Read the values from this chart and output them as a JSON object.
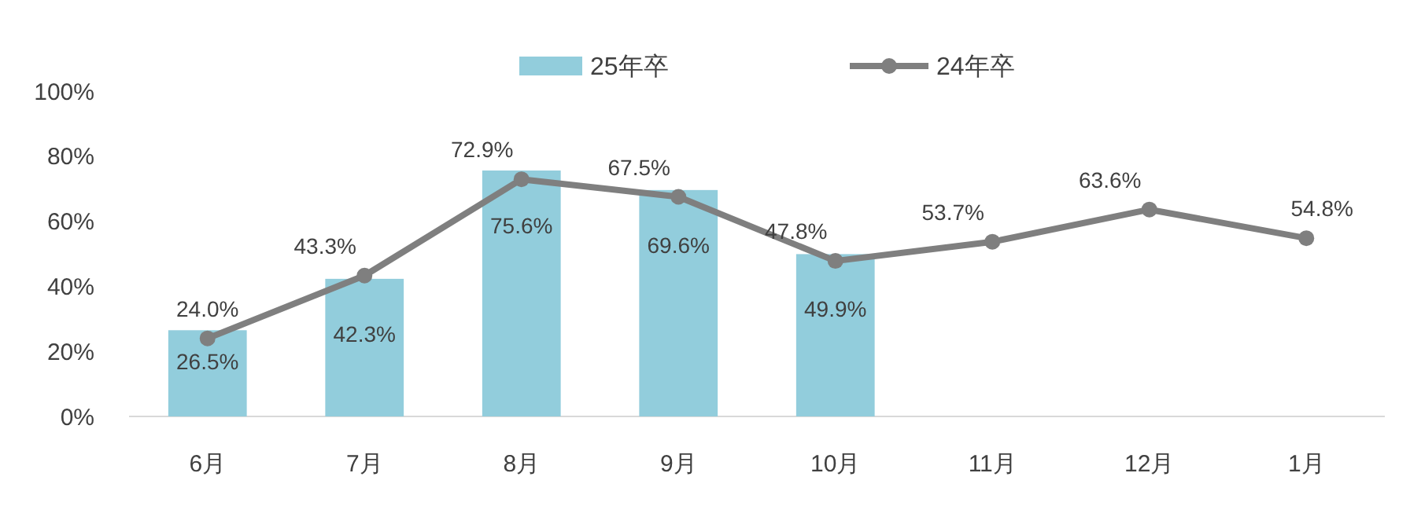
{
  "chart_data": {
    "type": "bar",
    "categories": [
      "6月",
      "7月",
      "8月",
      "9月",
      "10月",
      "11月",
      "12月",
      "1月"
    ],
    "ylim": [
      0,
      100
    ],
    "yticks": [
      {
        "value": 0,
        "label": "0%"
      },
      {
        "value": 20,
        "label": "20%"
      },
      {
        "value": 40,
        "label": "40%"
      },
      {
        "value": 60,
        "label": "60%"
      },
      {
        "value": 80,
        "label": "80%"
      },
      {
        "value": 100,
        "label": "100%"
      }
    ],
    "grid": false,
    "legend": "top",
    "marker": "circle",
    "series": [
      {
        "name": "25年卒",
        "color": "#92cddc",
        "values": [
          26.5,
          42.3,
          75.6,
          69.6,
          49.9,
          null,
          null,
          null
        ],
        "value_labels": [
          "26.5%",
          "42.3%",
          "75.6%",
          "69.6%",
          "49.9%",
          null,
          null,
          null
        ]
      },
      {
        "name": "24年卒",
        "type": "line",
        "color": "#7f7f7f",
        "values": [
          24.0,
          43.3,
          72.9,
          67.5,
          47.8,
          53.7,
          63.6,
          54.8
        ],
        "value_labels": [
          "24.0%",
          "43.3%",
          "72.9%",
          "67.5%",
          "47.8%",
          "53.7%",
          "63.6%",
          "54.8%"
        ]
      }
    ]
  }
}
